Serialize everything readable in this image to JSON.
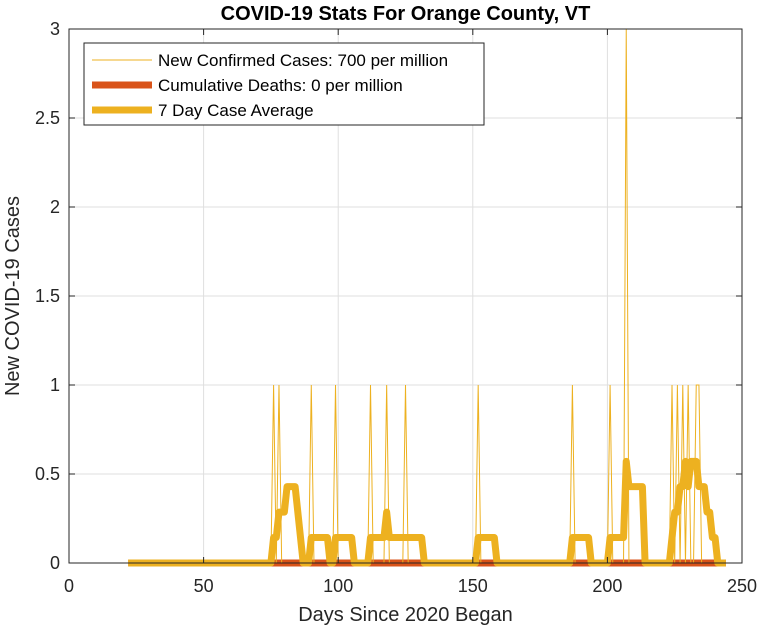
{
  "chart_data": {
    "type": "line",
    "title": "COVID-19 Stats For Orange County, VT",
    "xlabel": "Days Since 2020 Began",
    "ylabel": "New COVID-19 Cases",
    "xlim": [
      0,
      250
    ],
    "ylim": [
      0,
      3
    ],
    "xticks": [
      0,
      50,
      100,
      150,
      200,
      250
    ],
    "yticks": [
      0,
      0.5,
      1,
      1.5,
      2,
      2.5,
      3
    ],
    "xtick_labels": [
      "0",
      "50",
      "100",
      "150",
      "200",
      "250"
    ],
    "ytick_labels": [
      "0",
      "0.5",
      "1",
      "1.5",
      "2",
      "2.5",
      "3"
    ],
    "grid": true,
    "legend_position": "top-left",
    "x_start": 22,
    "x_end": 244,
    "series": [
      {
        "name": "New Confirmed Cases: 700 per million",
        "color": "#EDB120",
        "style": "thin",
        "points": [
          [
            76,
            1
          ],
          [
            78,
            1
          ],
          [
            90,
            1
          ],
          [
            99,
            1
          ],
          [
            112,
            1
          ],
          [
            118,
            1
          ],
          [
            125,
            1
          ],
          [
            152,
            1
          ],
          [
            187,
            1
          ],
          [
            201,
            1
          ],
          [
            207,
            3
          ],
          [
            224,
            1
          ],
          [
            226,
            1
          ],
          [
            228,
            1
          ],
          [
            230,
            1
          ],
          [
            233,
            1
          ],
          [
            234,
            1
          ]
        ]
      },
      {
        "name": "Cumulative Deaths: 0 per million",
        "color": "#D95319",
        "style": "thick",
        "points": [
          [
            22,
            0
          ],
          [
            244,
            0
          ]
        ]
      },
      {
        "name": "7 Day Case Average",
        "color": "#EDB120",
        "style": "thick",
        "points": [
          [
            22,
            0
          ],
          [
            75,
            0
          ],
          [
            76,
            0.143
          ],
          [
            77,
            0.143
          ],
          [
            78,
            0.286
          ],
          [
            79,
            0.286
          ],
          [
            80,
            0.286
          ],
          [
            81,
            0.429
          ],
          [
            82,
            0.429
          ],
          [
            83,
            0.429
          ],
          [
            84,
            0.429
          ],
          [
            85,
            0.286
          ],
          [
            86,
            0.143
          ],
          [
            87,
            0
          ],
          [
            88,
            0
          ],
          [
            89,
            0
          ],
          [
            90,
            0.143
          ],
          [
            91,
            0.143
          ],
          [
            92,
            0.143
          ],
          [
            93,
            0.143
          ],
          [
            94,
            0.143
          ],
          [
            95,
            0.143
          ],
          [
            96,
            0.143
          ],
          [
            97,
            0
          ],
          [
            98,
            0
          ],
          [
            99,
            0.143
          ],
          [
            100,
            0.143
          ],
          [
            101,
            0.143
          ],
          [
            102,
            0.143
          ],
          [
            103,
            0.143
          ],
          [
            104,
            0.143
          ],
          [
            105,
            0.143
          ],
          [
            106,
            0
          ],
          [
            107,
            0
          ],
          [
            108,
            0
          ],
          [
            109,
            0
          ],
          [
            110,
            0
          ],
          [
            111,
            0
          ],
          [
            112,
            0.143
          ],
          [
            113,
            0.143
          ],
          [
            114,
            0.143
          ],
          [
            115,
            0.143
          ],
          [
            116,
            0.143
          ],
          [
            117,
            0.143
          ],
          [
            118,
            0.286
          ],
          [
            119,
            0.143
          ],
          [
            120,
            0.143
          ],
          [
            121,
            0.143
          ],
          [
            122,
            0.143
          ],
          [
            123,
            0.143
          ],
          [
            124,
            0.143
          ],
          [
            125,
            0.143
          ],
          [
            126,
            0.143
          ],
          [
            127,
            0.143
          ],
          [
            128,
            0.143
          ],
          [
            129,
            0.143
          ],
          [
            130,
            0.143
          ],
          [
            131,
            0.143
          ],
          [
            132,
            0
          ],
          [
            151,
            0
          ],
          [
            152,
            0.143
          ],
          [
            153,
            0.143
          ],
          [
            154,
            0.143
          ],
          [
            155,
            0.143
          ],
          [
            156,
            0.143
          ],
          [
            157,
            0.143
          ],
          [
            158,
            0.143
          ],
          [
            159,
            0
          ],
          [
            186,
            0
          ],
          [
            187,
            0.143
          ],
          [
            188,
            0.143
          ],
          [
            189,
            0.143
          ],
          [
            190,
            0.143
          ],
          [
            191,
            0.143
          ],
          [
            192,
            0.143
          ],
          [
            193,
            0.143
          ],
          [
            194,
            0
          ],
          [
            200,
            0
          ],
          [
            201,
            0.143
          ],
          [
            202,
            0.143
          ],
          [
            203,
            0.143
          ],
          [
            204,
            0.143
          ],
          [
            205,
            0.143
          ],
          [
            206,
            0.143
          ],
          [
            207,
            0.571
          ],
          [
            208,
            0.429
          ],
          [
            209,
            0.429
          ],
          [
            210,
            0.429
          ],
          [
            211,
            0.429
          ],
          [
            212,
            0.429
          ],
          [
            213,
            0.429
          ],
          [
            214,
            0
          ],
          [
            223,
            0
          ],
          [
            224,
            0.143
          ],
          [
            225,
            0.286
          ],
          [
            226,
            0.286
          ],
          [
            227,
            0.429
          ],
          [
            228,
            0.429
          ],
          [
            229,
            0.571
          ],
          [
            230,
            0.429
          ],
          [
            231,
            0.571
          ],
          [
            232,
            0.571
          ],
          [
            233,
            0.571
          ],
          [
            234,
            0.429
          ],
          [
            235,
            0.429
          ],
          [
            236,
            0.429
          ],
          [
            237,
            0.286
          ],
          [
            238,
            0.286
          ],
          [
            239,
            0.143
          ],
          [
            240,
            0.143
          ],
          [
            241,
            0
          ],
          [
            244,
            0
          ]
        ]
      }
    ]
  }
}
